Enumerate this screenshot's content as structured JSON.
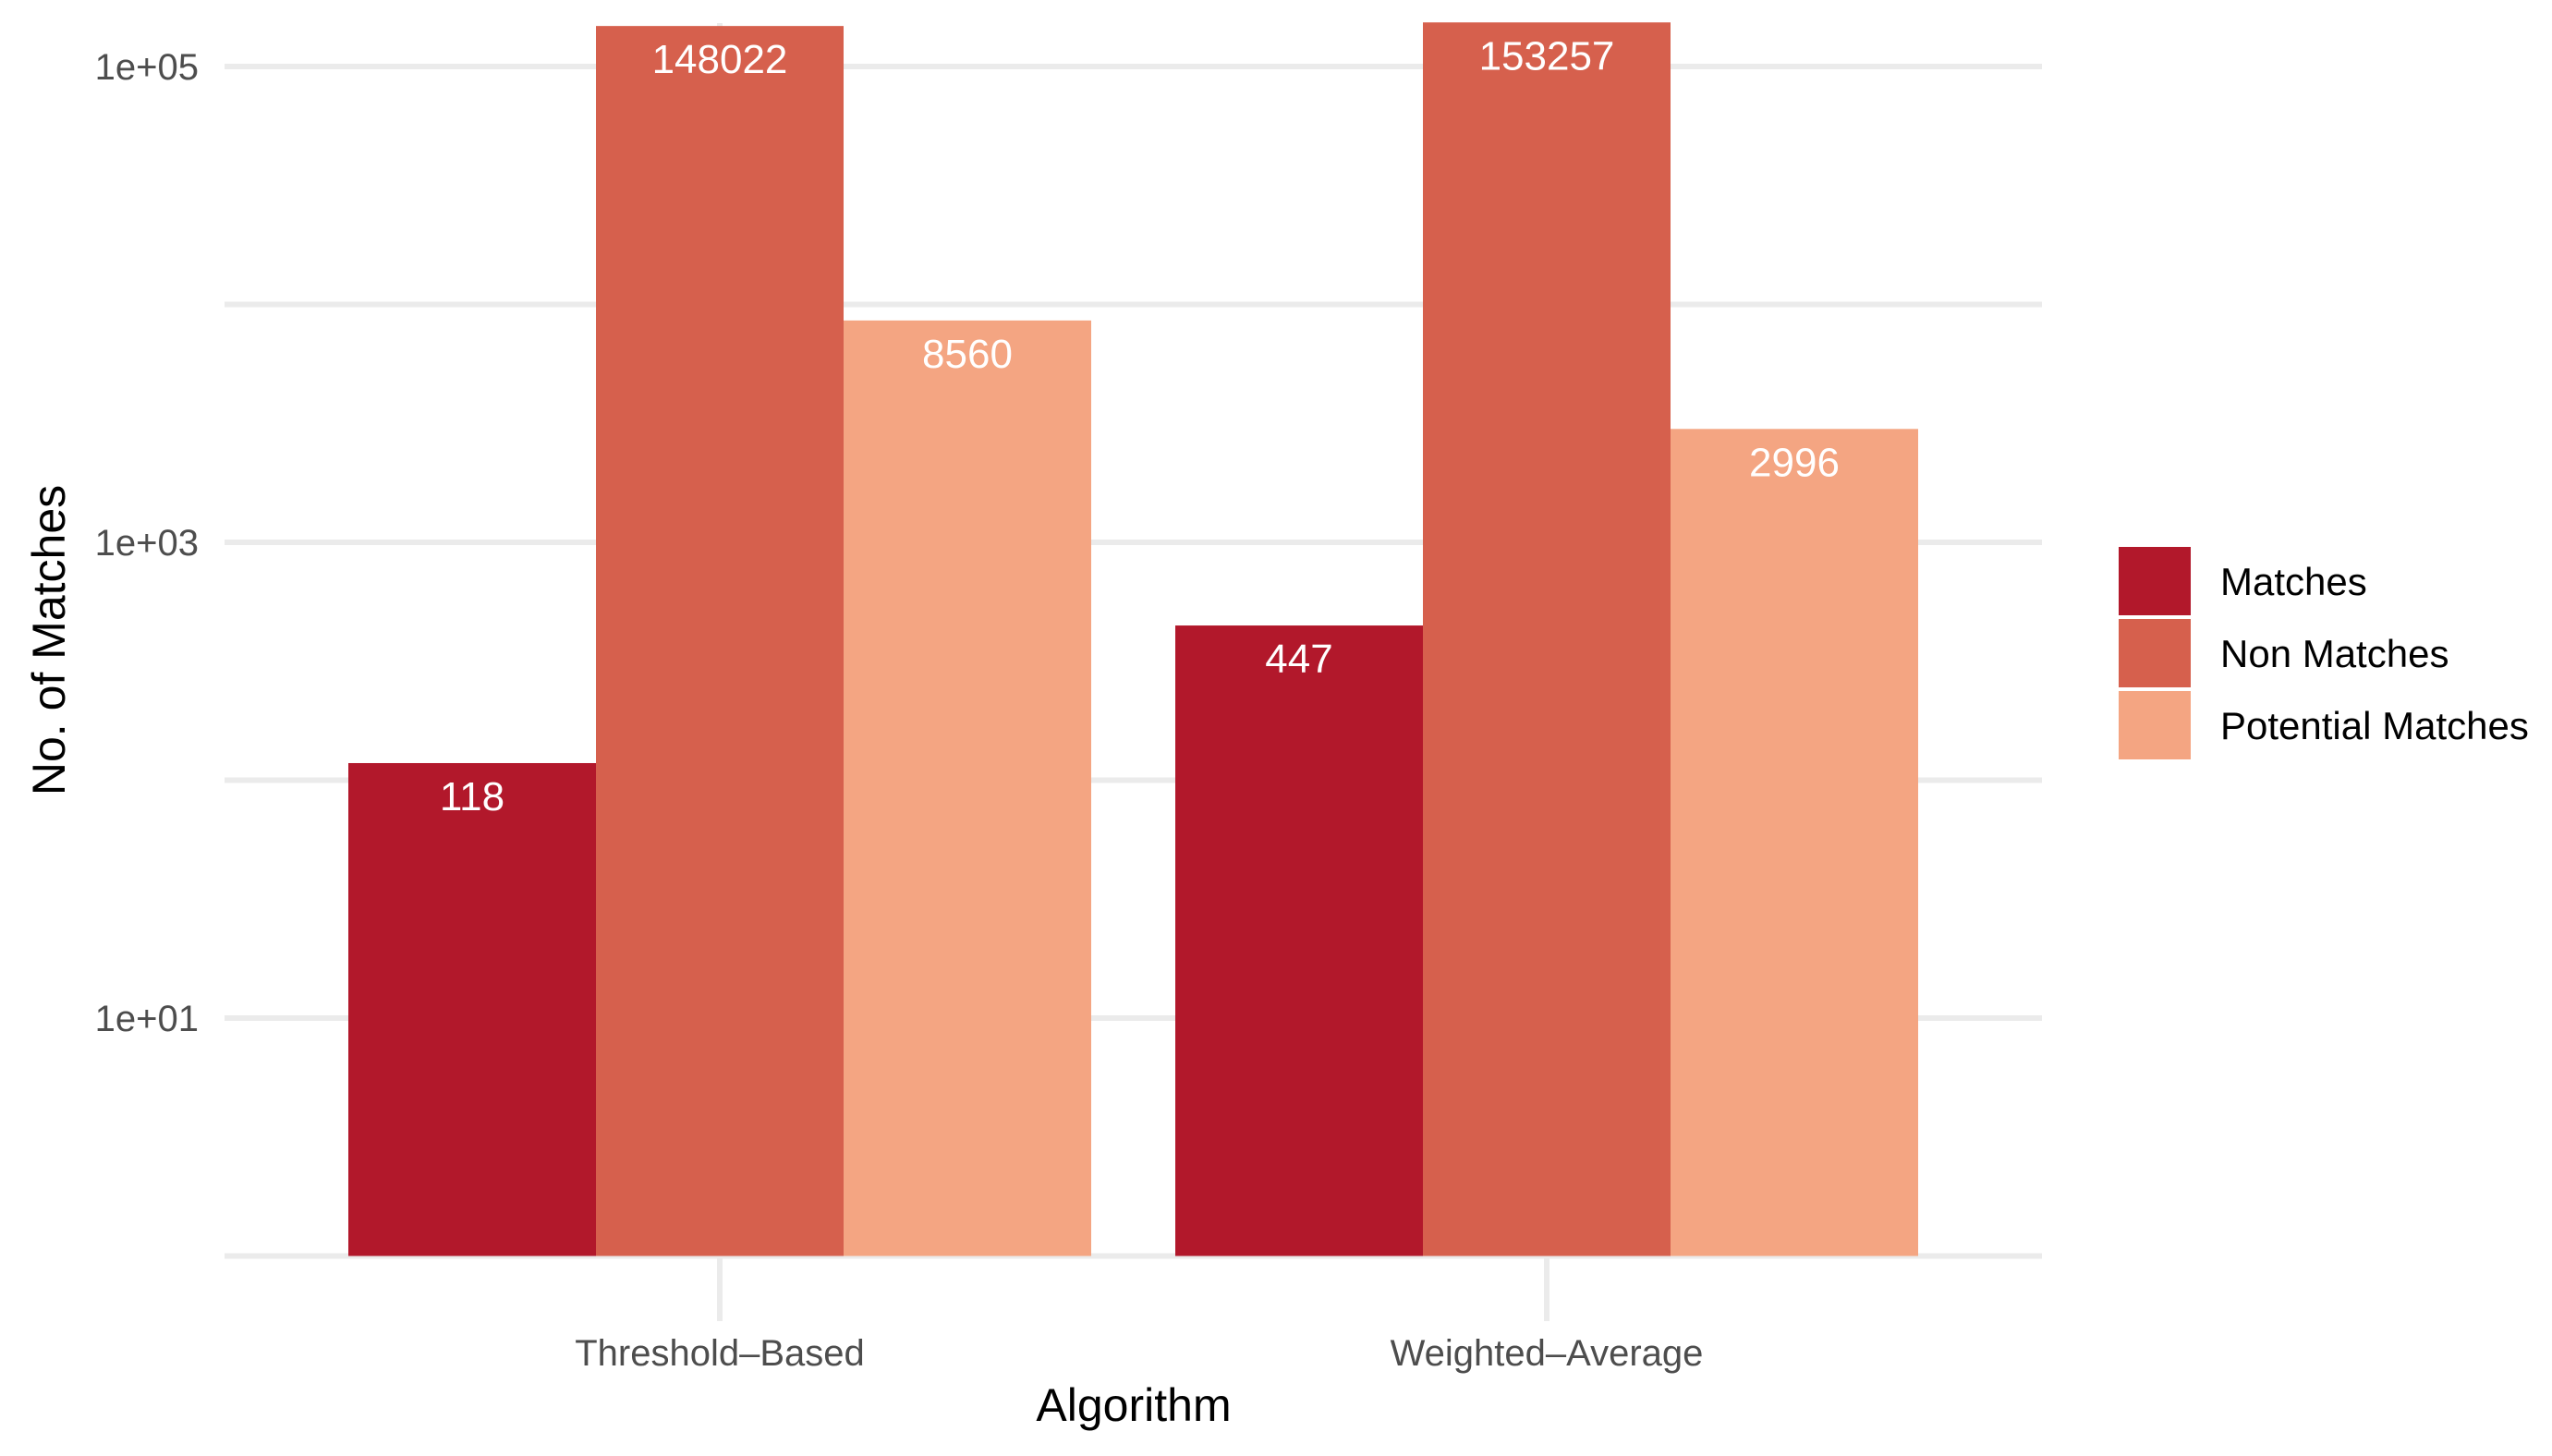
{
  "chart_data": {
    "type": "bar",
    "title": "",
    "xlabel": "Algorithm",
    "ylabel": "No. of Matches",
    "y_scale": "log10",
    "ylim": [
      1,
      200000
    ],
    "yticks": [
      10,
      1000,
      100000
    ],
    "ytick_labels": [
      "1e+01",
      "1e+03",
      "1e+05"
    ],
    "grid": true,
    "legend_position": "right",
    "categories": [
      "Threshold–Based",
      "Weighted–Average"
    ],
    "series": [
      {
        "name": "Matches",
        "color": "#b2182b",
        "values": [
          118,
          447
        ],
        "labels": [
          "118",
          "447"
        ]
      },
      {
        "name": "Non Matches",
        "color": "#d6604d",
        "values": [
          148022,
          153257
        ],
        "labels": [
          "148022",
          "153257"
        ]
      },
      {
        "name": "Potential Matches",
        "color": "#f4a582",
        "values": [
          8560,
          2996
        ],
        "labels": [
          "8560",
          "2996"
        ]
      }
    ]
  }
}
